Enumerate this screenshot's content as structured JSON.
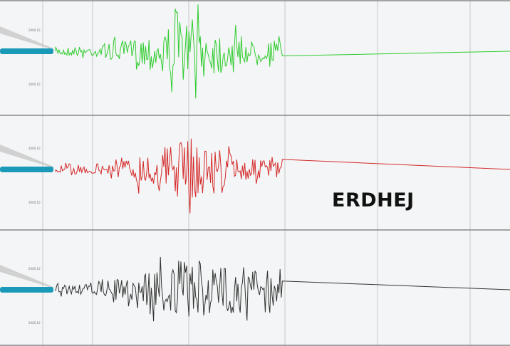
{
  "caption": "ERDHEJ",
  "traces": [
    {
      "color": "#2fcc2f",
      "scale_labels": [
        "2000.10",
        "0.00",
        "2000.10"
      ]
    },
    {
      "color": "#d42a2a",
      "scale_labels": [
        "2000.10",
        "0.00",
        "2000.10"
      ]
    },
    {
      "color": "#333333",
      "scale_labels": [
        "2000.10",
        "0.00",
        "2000.10"
      ]
    }
  ],
  "colors": {
    "background": "#f4f5f6",
    "grid": "#c8c8c8",
    "stylus": "#1a9ab8"
  }
}
